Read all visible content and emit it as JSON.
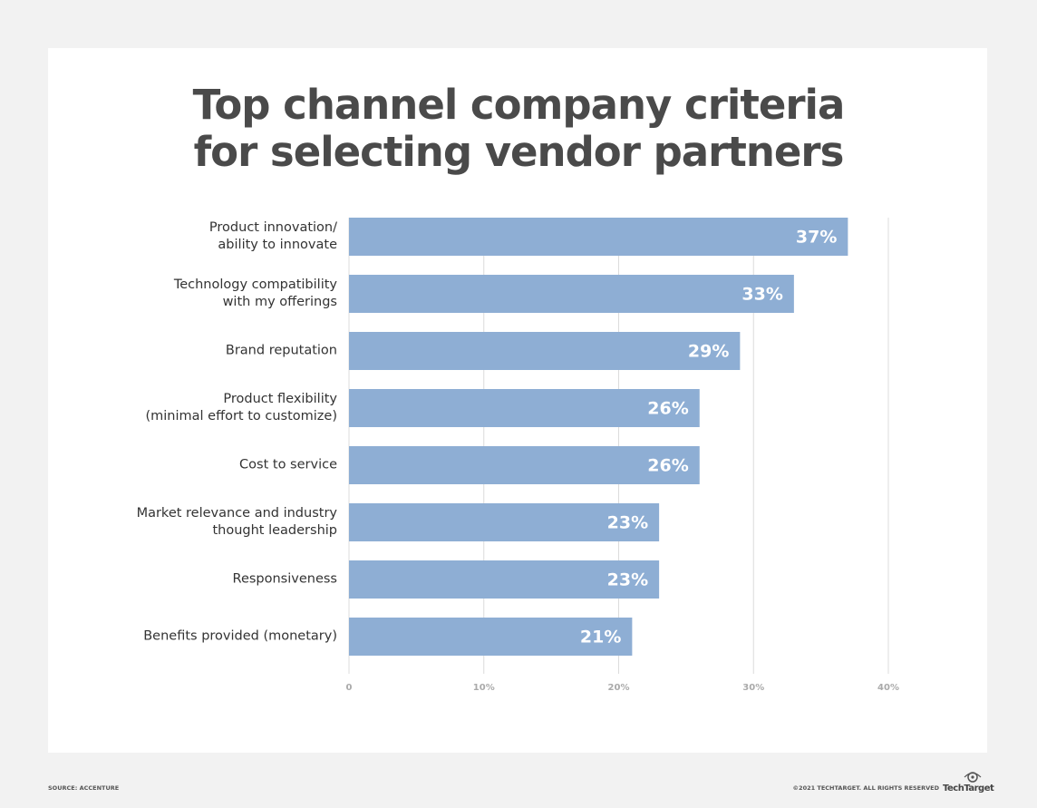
{
  "chart_data": {
    "type": "bar",
    "orientation": "horizontal",
    "title": "Top channel company criteria\nfor selecting vendor partners",
    "categories": [
      "Product innovation/\nability to innovate",
      "Technology compatibility\nwith my offerings",
      "Brand reputation",
      "Product flexibility\n(minimal effort to customize)",
      "Cost to service",
      "Market relevance and industry\nthought leadership",
      "Responsiveness",
      "Benefits provided (monetary)"
    ],
    "values": [
      37,
      33,
      29,
      26,
      26,
      23,
      23,
      21
    ],
    "value_labels": [
      "37%",
      "33%",
      "29%",
      "26%",
      "26%",
      "23%",
      "23%",
      "21%"
    ],
    "color": "#8eaed4",
    "xlim": [
      0,
      40
    ],
    "xticks": [
      0,
      {
        "value": 10,
        "label": "10%"
      },
      {
        "value": 20,
        "label": "20%"
      },
      {
        "value": 30,
        "label": "30%"
      },
      {
        "value": 40,
        "label": "40%"
      }
    ],
    "grid": true
  },
  "footer": {
    "source": "SOURCE: ACCENTURE",
    "copyright": "©2021 TECHTARGET. ALL RIGHTS RESERVED",
    "logo": "TechTarget"
  }
}
